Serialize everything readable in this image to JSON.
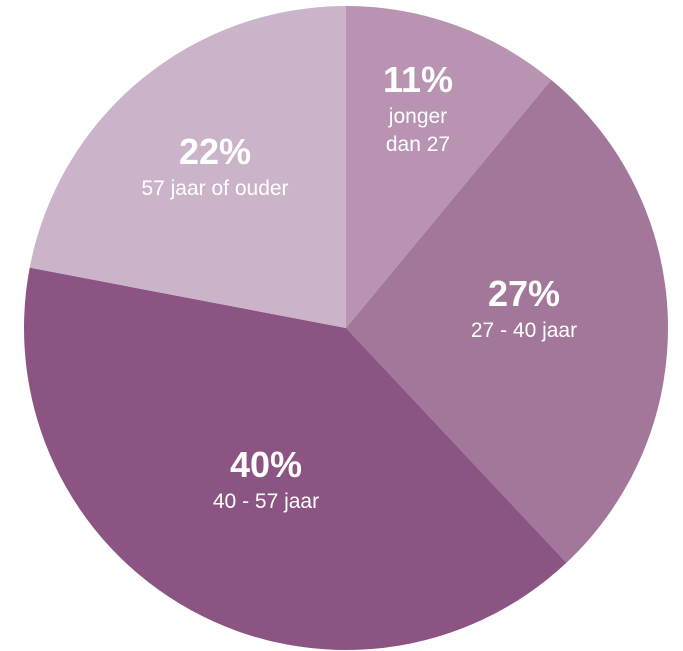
{
  "chart_data": {
    "type": "pie",
    "start_angle_deg": 0,
    "direction": "clockwise",
    "slices": [
      {
        "value": 11,
        "percent_label": "11%",
        "label_lines": [
          "jonger",
          "dan 27"
        ],
        "color": "#b894b2",
        "label_color": "#2b2b2b"
      },
      {
        "value": 27,
        "percent_label": "27%",
        "label_lines": [
          "27 - 40 jaar"
        ],
        "color": "#a2779a",
        "label_color": "#2b2b2b"
      },
      {
        "value": 40,
        "percent_label": "40%",
        "label_lines": [
          "40 - 57 jaar"
        ],
        "color": "#8b5482",
        "label_color": "#ffffff"
      },
      {
        "value": 22,
        "percent_label": "22%",
        "label_lines": [
          "57 jaar of ouder"
        ],
        "color": "#cbb4c9",
        "label_color": "#2b2b2b"
      }
    ]
  }
}
